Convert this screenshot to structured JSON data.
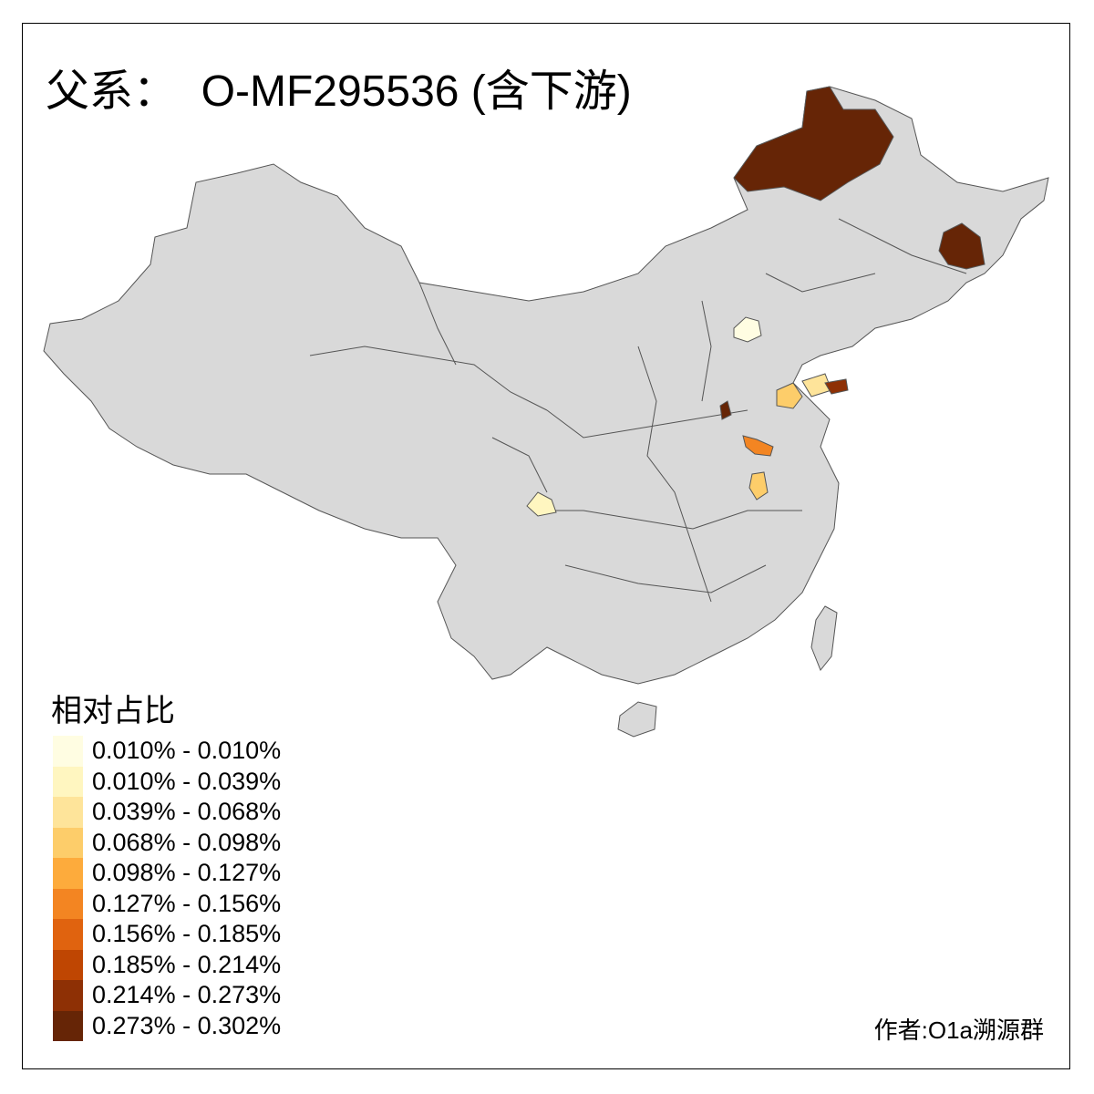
{
  "title": "父系：  O-MF295536 (含下游)",
  "legend": {
    "title": "相对占比",
    "items": [
      {
        "label": "0.010% - 0.010%",
        "color": "#FFFDE2"
      },
      {
        "label": "0.010% - 0.039%",
        "color": "#FFF6C0"
      },
      {
        "label": "0.039% - 0.068%",
        "color": "#FEE49A"
      },
      {
        "label": "0.068% - 0.098%",
        "color": "#FDCD6A"
      },
      {
        "label": "0.098% - 0.127%",
        "color": "#FDAB3C"
      },
      {
        "label": "0.127% - 0.156%",
        "color": "#F38522"
      },
      {
        "label": "0.156% - 0.185%",
        "color": "#E0630F"
      },
      {
        "label": "0.185% - 0.214%",
        "color": "#BF4602"
      },
      {
        "label": "0.214% - 0.273%",
        "color": "#8E3005"
      },
      {
        "label": "0.273% - 0.302%",
        "color": "#662506"
      }
    ]
  },
  "map": {
    "base_color": "#D9D9D9",
    "border_color": "#555555",
    "no_data_color": "#D9D9D9"
  },
  "credit": "作者:O1a溯源群"
}
